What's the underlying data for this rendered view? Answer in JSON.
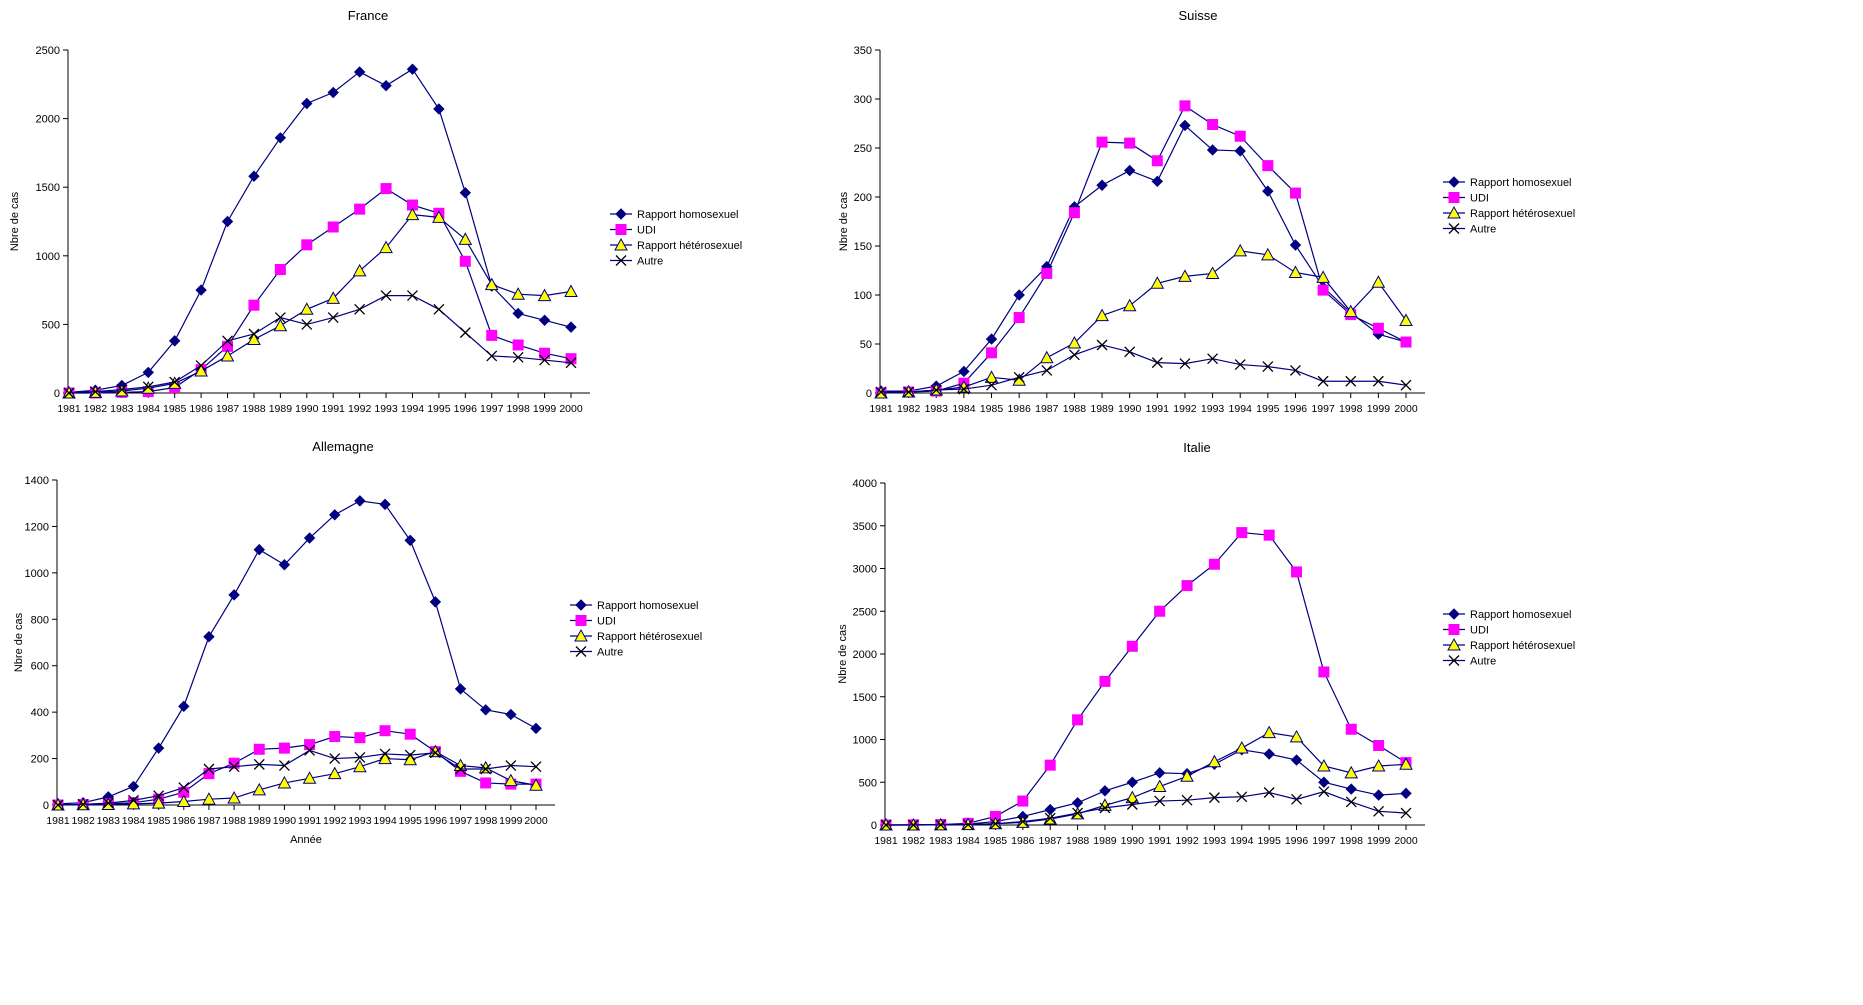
{
  "chart_data": [
    {
      "type": "line",
      "title": "France",
      "xlabel": "",
      "ylabel": "Nbre de cas",
      "ylim": [
        0,
        2500
      ],
      "yticks": [
        0,
        500,
        1000,
        1500,
        2000,
        2500
      ],
      "legend_position": "right",
      "grid": false,
      "categories": [
        "1981",
        "1982",
        "1983",
        "1984",
        "1985",
        "1986",
        "1987",
        "1988",
        "1989",
        "1990",
        "1991",
        "1992",
        "1993",
        "1994",
        "1995",
        "1996",
        "1997",
        "1998",
        "1999",
        "2000"
      ],
      "series": [
        {
          "name": "Rapport homosexuel",
          "values": [
            5,
            20,
            55,
            150,
            380,
            750,
            1250,
            1580,
            1860,
            2110,
            2190,
            2340,
            2240,
            2360,
            2070,
            1460,
            780,
            580,
            530,
            480
          ]
        },
        {
          "name": "UDI",
          "values": [
            0,
            0,
            5,
            10,
            40,
            170,
            340,
            640,
            900,
            1080,
            1210,
            1340,
            1490,
            1370,
            1310,
            960,
            420,
            350,
            290,
            250
          ]
        },
        {
          "name": "Rapport hétérosexuel",
          "values": [
            0,
            5,
            15,
            35,
            70,
            160,
            270,
            390,
            490,
            610,
            690,
            890,
            1060,
            1300,
            1280,
            1120,
            790,
            720,
            710,
            740
          ]
        },
        {
          "name": "Autre",
          "values": [
            0,
            10,
            25,
            45,
            80,
            200,
            380,
            430,
            550,
            500,
            550,
            610,
            710,
            710,
            610,
            440,
            270,
            260,
            240,
            220
          ]
        }
      ]
    },
    {
      "type": "line",
      "title": "Suisse",
      "xlabel": "",
      "ylabel": "Nbre de cas",
      "ylim": [
        0,
        350
      ],
      "yticks": [
        0,
        50,
        100,
        150,
        200,
        250,
        300,
        350
      ],
      "legend_position": "right",
      "grid": false,
      "categories": [
        "1981",
        "1982",
        "1983",
        "1984",
        "1985",
        "1986",
        "1987",
        "1988",
        "1989",
        "1990",
        "1991",
        "1992",
        "1993",
        "1994",
        "1995",
        "1996",
        "1997",
        "1998",
        "1999",
        "2000"
      ],
      "series": [
        {
          "name": "Rapport homosexuel",
          "values": [
            2,
            2,
            7,
            22,
            55,
            100,
            129,
            190,
            212,
            227,
            216,
            273,
            248,
            247,
            206,
            151,
            108,
            82,
            60,
            52
          ]
        },
        {
          "name": "UDI",
          "values": [
            0,
            1,
            2,
            10,
            41,
            77,
            122,
            184,
            256,
            255,
            237,
            293,
            274,
            262,
            232,
            204,
            105,
            80,
            66,
            52
          ]
        },
        {
          "name": "Rapport hétérosexuel",
          "values": [
            0,
            1,
            3,
            6,
            16,
            13,
            36,
            51,
            79,
            89,
            112,
            119,
            122,
            145,
            141,
            123,
            118,
            83,
            113,
            74
          ]
        },
        {
          "name": "Autre",
          "values": [
            1,
            1,
            3,
            4,
            8,
            16,
            23,
            39,
            49,
            42,
            31,
            30,
            35,
            29,
            27,
            23,
            12,
            12,
            12,
            8
          ]
        }
      ]
    },
    {
      "type": "line",
      "title": "Allemagne",
      "xlabel": "Année",
      "ylabel": "Nbre de cas",
      "ylim": [
        0,
        1400
      ],
      "yticks": [
        0,
        200,
        400,
        600,
        800,
        1000,
        1200,
        1400
      ],
      "legend_position": "right",
      "grid": false,
      "categories": [
        "1981",
        "1982",
        "1983",
        "1984",
        "1985",
        "1986",
        "1987",
        "1988",
        "1989",
        "1990",
        "1991",
        "1992",
        "1993",
        "1994",
        "1995",
        "1996",
        "1997",
        "1998",
        "1999",
        "2000"
      ],
      "series": [
        {
          "name": "Rapport homosexuel",
          "values": [
            5,
            10,
            35,
            80,
            245,
            425,
            725,
            905,
            1100,
            1035,
            1150,
            1250,
            1310,
            1295,
            1140,
            875,
            500,
            410,
            390,
            330
          ]
        },
        {
          "name": "UDI",
          "values": [
            0,
            2,
            5,
            10,
            25,
            55,
            135,
            180,
            240,
            245,
            260,
            295,
            290,
            320,
            305,
            230,
            145,
            95,
            90,
            90
          ]
        },
        {
          "name": "Rapport hétérosexuel",
          "values": [
            0,
            1,
            2,
            5,
            8,
            15,
            25,
            30,
            65,
            95,
            115,
            135,
            165,
            200,
            195,
            230,
            170,
            160,
            105,
            85
          ]
        },
        {
          "name": "Autre",
          "values": [
            0,
            3,
            8,
            20,
            40,
            75,
            155,
            165,
            175,
            170,
            235,
            200,
            205,
            220,
            215,
            225,
            155,
            155,
            170,
            165
          ]
        }
      ]
    },
    {
      "type": "line",
      "title": "Italie",
      "xlabel": "",
      "ylabel": "Nbre de cas",
      "ylim": [
        0,
        4000
      ],
      "yticks": [
        0,
        500,
        1000,
        1500,
        2000,
        2500,
        3000,
        3500,
        4000
      ],
      "legend_position": "right",
      "grid": false,
      "categories": [
        "1981",
        "1982",
        "1983",
        "1984",
        "1985",
        "1986",
        "1987",
        "1988",
        "1989",
        "1990",
        "1991",
        "1992",
        "1993",
        "1994",
        "1995",
        "1996",
        "1997",
        "1998",
        "1999",
        "2000"
      ],
      "series": [
        {
          "name": "Rapport homosexuel",
          "values": [
            0,
            2,
            5,
            10,
            40,
            100,
            180,
            260,
            400,
            500,
            610,
            600,
            710,
            880,
            830,
            760,
            500,
            420,
            350,
            370
          ]
        },
        {
          "name": "UDI",
          "values": [
            0,
            2,
            5,
            20,
            100,
            280,
            700,
            1230,
            1680,
            2090,
            2500,
            2800,
            3050,
            3420,
            3390,
            2960,
            1790,
            1120,
            930,
            730
          ]
        },
        {
          "name": "Rapport hétérosexuel",
          "values": [
            0,
            0,
            2,
            5,
            15,
            30,
            70,
            130,
            230,
            320,
            450,
            570,
            740,
            900,
            1080,
            1030,
            690,
            610,
            690,
            710
          ]
        },
        {
          "name": "Autre",
          "values": [
            0,
            0,
            2,
            5,
            15,
            40,
            80,
            140,
            200,
            240,
            280,
            290,
            320,
            330,
            380,
            300,
            390,
            270,
            160,
            140
          ]
        }
      ]
    }
  ],
  "series_styles": [
    {
      "color": "#000080",
      "fill": "#000080",
      "marker": "diamond"
    },
    {
      "color": "#000080",
      "fill": "#ff00ff",
      "marker": "square"
    },
    {
      "color": "#000080",
      "fill": "#ffff00",
      "marker": "triangle"
    },
    {
      "color": "#000080",
      "fill": "none",
      "marker": "cross"
    }
  ]
}
